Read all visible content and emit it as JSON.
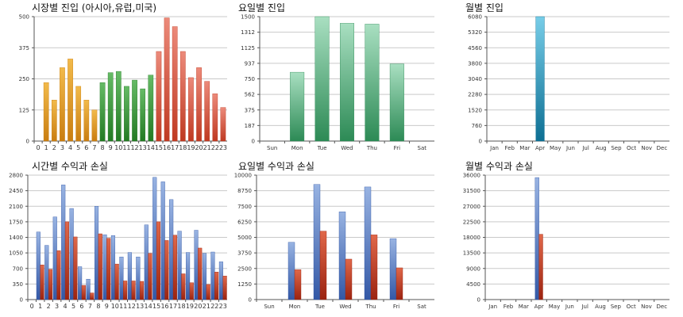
{
  "colors": {
    "orange": [
      "#f2ba4a",
      "#c97d10"
    ],
    "green": [
      "#66bb66",
      "#237a23"
    ],
    "red": [
      "#ec8a7a",
      "#bf3a22"
    ],
    "teal_green": [
      "#a9dfc1",
      "#2c8a55"
    ],
    "cyan": [
      "#77cde8",
      "#0d6f93"
    ],
    "blue": [
      "#98b3e2",
      "#3358a6"
    ],
    "dark_red": [
      "#e0684a",
      "#9b2310"
    ],
    "grid": "#c9c9c9",
    "axis": "#555555"
  },
  "chart_data": [
    {
      "id": "market-entry",
      "type": "bar",
      "title": "시장별 진입 (아시아,유럽,미국)",
      "categories": [
        "0",
        "1",
        "2",
        "3",
        "4",
        "5",
        "6",
        "7",
        "8",
        "9",
        "10",
        "11",
        "12",
        "13",
        "14",
        "15",
        "16",
        "17",
        "18",
        "19",
        "20",
        "21",
        "22",
        "23"
      ],
      "values": [
        0,
        235,
        165,
        295,
        330,
        220,
        165,
        125,
        235,
        275,
        280,
        220,
        245,
        210,
        265,
        360,
        495,
        460,
        360,
        255,
        295,
        240,
        190,
        135
      ],
      "value_colors": [
        "orange",
        "orange",
        "orange",
        "orange",
        "orange",
        "orange",
        "orange",
        "orange",
        "green",
        "green",
        "green",
        "green",
        "green",
        "green",
        "green",
        "red",
        "red",
        "red",
        "red",
        "red",
        "red",
        "red",
        "red",
        "red"
      ],
      "yticks": [
        "0",
        "125",
        "250",
        "375",
        "500"
      ],
      "ylim": [
        0,
        500
      ],
      "grid": true
    },
    {
      "id": "weekday-entry",
      "type": "bar",
      "title": "요일별 진입",
      "categories": [
        "Sun",
        "Mon",
        "Tue",
        "Wed",
        "Thu",
        "Fri",
        "Sat"
      ],
      "values": [
        0,
        830,
        1500,
        1420,
        1410,
        930,
        0
      ],
      "color": "teal_green",
      "yticks": [
        "0",
        "187",
        "375",
        "562",
        "750",
        "937",
        "1125",
        "1312",
        "1500"
      ],
      "ylim": [
        0,
        1500
      ],
      "grid": true
    },
    {
      "id": "month-entry",
      "type": "bar",
      "title": "월별 진입",
      "categories": [
        "Jan",
        "Feb",
        "Mar",
        "Apr",
        "May",
        "Jun",
        "Jul",
        "Aug",
        "Sep",
        "Oct",
        "Nov",
        "Dec"
      ],
      "values": [
        0,
        0,
        0,
        6080,
        0,
        0,
        0,
        0,
        0,
        0,
        0,
        0
      ],
      "color": "cyan",
      "yticks": [
        "0",
        "760",
        "1520",
        "2280",
        "3040",
        "3800",
        "4560",
        "5320",
        "6080"
      ],
      "ylim": [
        0,
        6080
      ],
      "grid": true
    },
    {
      "id": "hourly-pnl",
      "type": "bar",
      "title": "시간별 수익과 손실",
      "categories": [
        "0",
        "1",
        "2",
        "3",
        "4",
        "5",
        "6",
        "7",
        "8",
        "9",
        "10",
        "11",
        "12",
        "13",
        "14",
        "15",
        "16",
        "17",
        "18",
        "19",
        "20",
        "21",
        "22",
        "23"
      ],
      "series": [
        {
          "color": "blue",
          "values": [
            0,
            1520,
            1220,
            1860,
            2580,
            2050,
            740,
            460,
            2100,
            1460,
            1440,
            960,
            1060,
            960,
            1680,
            2750,
            2650,
            2250,
            1540,
            1060,
            1560,
            1040,
            1070,
            850
          ]
        },
        {
          "color": "dark_red",
          "values": [
            0,
            780,
            680,
            1100,
            1750,
            1410,
            320,
            150,
            1480,
            1380,
            800,
            420,
            420,
            410,
            1040,
            1750,
            1330,
            1450,
            580,
            380,
            1160,
            340,
            620,
            530
          ]
        }
      ],
      "yticks": [
        "0",
        "350",
        "700",
        "1050",
        "1400",
        "1750",
        "2100",
        "2450",
        "2800"
      ],
      "ylim": [
        0,
        2800
      ],
      "grid": true
    },
    {
      "id": "weekday-pnl",
      "type": "bar",
      "title": "요일별 수익과 손실",
      "categories": [
        "Sun",
        "Mon",
        "Tue",
        "Wed",
        "Thu",
        "Fri",
        "Sat"
      ],
      "series": [
        {
          "color": "blue",
          "values": [
            0,
            4600,
            9250,
            7050,
            9050,
            4900,
            0
          ]
        },
        {
          "color": "dark_red",
          "values": [
            0,
            2400,
            5500,
            3250,
            5200,
            2550,
            0
          ]
        }
      ],
      "yticks": [
        "0",
        "1250",
        "2500",
        "3750",
        "5000",
        "6250",
        "7500",
        "8750",
        "10000"
      ],
      "ylim": [
        0,
        10000
      ],
      "grid": true
    },
    {
      "id": "month-pnl",
      "type": "bar",
      "title": "월별 수익과 손실",
      "categories": [
        "Jan",
        "Feb",
        "Mar",
        "Apr",
        "May",
        "Jun",
        "Jul",
        "Aug",
        "Sep",
        "Oct",
        "Nov",
        "Dec"
      ],
      "series": [
        {
          "color": "blue",
          "values": [
            0,
            0,
            0,
            35300,
            0,
            0,
            0,
            0,
            0,
            0,
            0,
            0
          ]
        },
        {
          "color": "dark_red",
          "values": [
            0,
            0,
            0,
            18900,
            0,
            0,
            0,
            0,
            0,
            0,
            0,
            0
          ]
        }
      ],
      "yticks": [
        "0",
        "4500",
        "9000",
        "13500",
        "18000",
        "22500",
        "27000",
        "31500",
        "36000"
      ],
      "ylim": [
        0,
        36000
      ],
      "grid": true
    }
  ]
}
